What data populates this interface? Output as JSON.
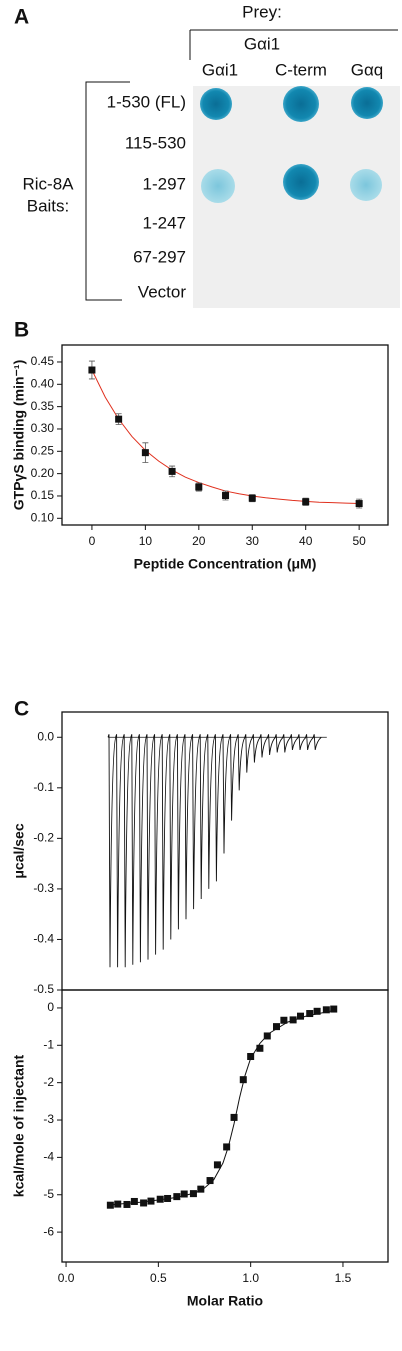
{
  "panel_a": {
    "label": "A",
    "prey": "Prey:",
    "prey_group": "Gαi1",
    "columns": [
      "Gαi1",
      "C-term",
      "Gαq"
    ],
    "baits": [
      "Ric-8A",
      "Baits:"
    ],
    "rows": [
      "1-530 (FL)",
      "115-530",
      "1-297",
      "1-247",
      "67-297",
      "Vector"
    ]
  },
  "chart_data": [
    {
      "type": "scatter",
      "panel": "B",
      "y_label": "GTPγS binding (min⁻¹)",
      "x_label": "Peptide Concentration (μM)",
      "xlim": [
        -5.6,
        55.4
      ],
      "xticks": [
        0,
        10,
        20,
        30,
        40,
        50
      ],
      "ylim": [
        0.085,
        0.488
      ],
      "yticks": [
        {
          "value": 0.1,
          "label": "0.10"
        },
        0.15,
        {
          "value": 0.2,
          "label": "0.20"
        },
        0.25,
        {
          "value": 0.3,
          "label": "0.30"
        },
        0.35,
        {
          "value": 0.4,
          "label": "0.40"
        },
        0.45
      ],
      "points": {
        "color": "#111111",
        "x": [
          0,
          5,
          10,
          15,
          20,
          25,
          30,
          40,
          50
        ],
        "values": [
          0.432,
          0.322,
          0.247,
          0.205,
          0.17,
          0.151,
          0.145,
          0.137,
          0.133
        ],
        "errors": [
          0.02,
          0.012,
          0.022,
          0.012,
          0.009,
          0.01,
          0.008,
          0.008,
          0.01
        ]
      },
      "fit": {
        "color": "#e0301e",
        "x": [
          0,
          2.5,
          5,
          7.5,
          10,
          12.5,
          15,
          17.5,
          20,
          22.5,
          25,
          27.5,
          30,
          32.5,
          35,
          37.5,
          40,
          42.5,
          45,
          47.5,
          50
        ],
        "values": [
          0.432,
          0.371,
          0.322,
          0.283,
          0.252,
          0.228,
          0.208,
          0.192,
          0.18,
          0.17,
          0.161,
          0.155,
          0.15,
          0.146,
          0.143,
          0.14,
          0.138,
          0.136,
          0.135,
          0.134,
          0.133
        ]
      }
    },
    {
      "type": "trace",
      "panel": "C",
      "y_label": "μcal/sec",
      "ylim": [
        -0.5,
        0.05
      ],
      "yticks": [
        {
          "value": 0,
          "label": "0.0"
        },
        -0.1,
        -0.2,
        -0.3,
        -0.4,
        -0.5
      ],
      "baseline": 0,
      "color": "#111111",
      "values": [
        -0.455,
        -0.455,
        -0.455,
        -0.45,
        -0.445,
        -0.44,
        -0.43,
        -0.42,
        -0.4,
        -0.38,
        -0.36,
        -0.34,
        -0.32,
        -0.3,
        -0.285,
        -0.23,
        -0.165,
        -0.105,
        -0.07,
        -0.05,
        -0.04,
        -0.035,
        -0.03,
        -0.03,
        -0.025,
        -0.025,
        -0.025,
        -0.025
      ]
    },
    {
      "type": "scatter",
      "y_label": "kcal/mole of injectant",
      "x_label": "Molar Ratio",
      "xlim": [
        -0.022,
        1.744
      ],
      "xticks": [
        {
          "value": 0,
          "label": "0.0"
        },
        0.5,
        {
          "value": 1,
          "label": "1.0"
        },
        1.5
      ],
      "ylim": [
        -6.8,
        0.48
      ],
      "yticks": [
        0,
        -1,
        -2,
        -3,
        -4,
        -5,
        -6
      ],
      "points": {
        "color": "#111111",
        "x": [
          0.24,
          0.28,
          0.33,
          0.37,
          0.42,
          0.46,
          0.51,
          0.55,
          0.6,
          0.64,
          0.69,
          0.73,
          0.78,
          0.82,
          0.87,
          0.91,
          0.96,
          1.0,
          1.05,
          1.09,
          1.14,
          1.18,
          1.23,
          1.27,
          1.32,
          1.36,
          1.41,
          1.45
        ],
        "values": [
          -5.28,
          -5.25,
          -5.26,
          -5.18,
          -5.22,
          -5.17,
          -5.12,
          -5.1,
          -5.05,
          -4.98,
          -4.97,
          -4.85,
          -4.62,
          -4.2,
          -3.72,
          -2.93,
          -1.92,
          -1.3,
          -1.08,
          -0.75,
          -0.5,
          -0.33,
          -0.32,
          -0.22,
          -0.15,
          -0.09,
          -0.05,
          -0.03
        ]
      },
      "fit": {
        "color": "#111111",
        "x": [
          0.24,
          0.4,
          0.5,
          0.6,
          0.7,
          0.75,
          0.8,
          0.85,
          0.88,
          0.91,
          0.94,
          0.97,
          1.0,
          1.05,
          1.1,
          1.2,
          1.3,
          1.46
        ],
        "values": [
          -5.27,
          -5.2,
          -5.14,
          -5.07,
          -4.95,
          -4.82,
          -4.6,
          -4.15,
          -3.7,
          -3.1,
          -2.4,
          -1.8,
          -1.35,
          -0.95,
          -0.68,
          -0.38,
          -0.22,
          -0.06
        ]
      }
    }
  ]
}
